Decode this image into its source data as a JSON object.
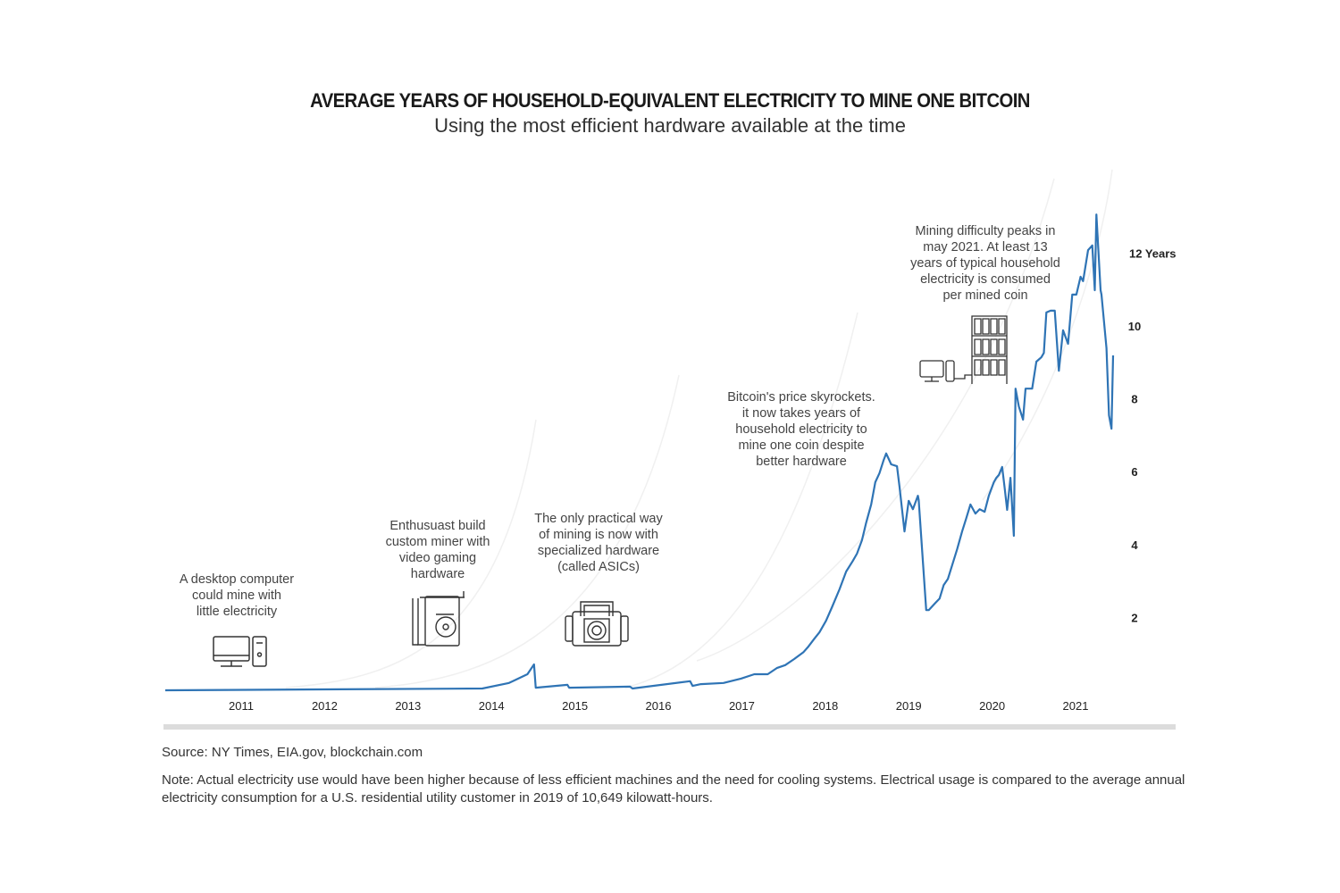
{
  "chart_data": {
    "type": "line",
    "title": "AVERAGE YEARS OF HOUSEHOLD-EQUIVALENT ELECTRICITY TO MINE ONE BITCOIN",
    "subtitle": "Using the most efficient hardware available at the time",
    "xlabel": "",
    "ylabel": "",
    "xlim": [
      2010.1,
      2022.0
    ],
    "ylim": [
      0,
      13
    ],
    "grid": false,
    "line_color": "#2f74b5",
    "x_ticks": [
      2011,
      2012,
      2013,
      2014,
      2015,
      2016,
      2017,
      2018,
      2019,
      2020,
      2021
    ],
    "x_tick_labels": [
      "2011",
      "2012",
      "2013",
      "2014",
      "2015",
      "2016",
      "2017",
      "2018",
      "2019",
      "2020",
      "2021"
    ],
    "y_ticks": [
      2,
      4,
      6,
      8,
      10,
      12
    ],
    "y_tick_labels": [
      "2",
      "4",
      "6",
      "8",
      "10",
      "12 Years"
    ],
    "series": [
      {
        "x": [
          2010.09,
          2013.89,
          2014.21,
          2014.43,
          2014.51,
          2014.53,
          2014.91,
          2014.93,
          2015.66,
          2015.69,
          2016.38,
          2016.41,
          2016.51,
          2016.78,
          2016.99,
          2017.15,
          2017.31,
          2017.42,
          2017.52,
          2017.63,
          2017.74,
          2017.79,
          2017.87,
          2017.93,
          2018.01,
          2018.08,
          2018.17,
          2018.25,
          2018.33,
          2018.38,
          2018.44,
          2018.49,
          2018.55,
          2018.6,
          2018.65,
          2018.7,
          2018.73,
          2018.79,
          2018.86,
          2018.89,
          2018.95,
          2019.0,
          2019.05,
          2019.11,
          2019.12,
          2019.21,
          2019.24,
          2019.32,
          2019.37,
          2019.42,
          2019.47,
          2019.53,
          2019.58,
          2019.64,
          2019.69,
          2019.74,
          2019.8,
          2019.85,
          2019.91,
          2019.96,
          2020.02,
          2020.05,
          2020.08,
          2020.12,
          2020.15,
          2020.18,
          2020.22,
          2020.26,
          2020.28,
          2020.32,
          2020.37,
          2020.4,
          2020.48,
          2020.53,
          2020.59,
          2020.62,
          2020.65,
          2020.7,
          2020.75,
          2020.8,
          2020.85,
          2020.91,
          2020.96,
          2021.01,
          2021.06,
          2021.09,
          2021.15,
          2021.2,
          2021.23,
          2021.25,
          2021.3,
          2021.31,
          2021.37,
          2021.4,
          2021.43,
          2021.45
        ],
        "y": [
          0,
          0.05,
          0.2,
          0.44,
          0.71,
          0.07,
          0.15,
          0.07,
          0.1,
          0.05,
          0.25,
          0.12,
          0.17,
          0.2,
          0.32,
          0.44,
          0.44,
          0.61,
          0.69,
          0.86,
          1.05,
          1.18,
          1.42,
          1.59,
          1.91,
          2.28,
          2.77,
          3.26,
          3.55,
          3.75,
          4.12,
          4.6,
          5.1,
          5.71,
          5.96,
          6.32,
          6.5,
          6.2,
          6.15,
          5.59,
          4.36,
          5.2,
          4.97,
          5.34,
          5.22,
          2.2,
          2.2,
          2.4,
          2.52,
          2.89,
          3.06,
          3.5,
          3.87,
          4.36,
          4.72,
          5.1,
          4.85,
          4.97,
          4.9,
          5.34,
          5.71,
          5.83,
          5.91,
          6.13,
          5.56,
          4.95,
          5.83,
          4.24,
          8.28,
          7.79,
          7.43,
          8.28,
          8.28,
          9.02,
          9.14,
          9.26,
          10.37,
          10.42,
          10.42,
          8.77,
          9.88,
          9.51,
          10.86,
          10.86,
          11.35,
          11.23,
          12.08,
          12.21,
          10.98,
          13.06,
          10.98,
          10.86,
          9.39,
          7.55,
          7.18,
          9.19
        ]
      }
    ],
    "annotations": [
      {
        "text": [
          "A desktop computer",
          "could mine with",
          "little electricity"
        ],
        "icon": "desktop-computer-icon"
      },
      {
        "text": [
          "Enthusuast build",
          "custom miner with",
          "video gaming",
          "hardware"
        ],
        "icon": "graphics-card-icon"
      },
      {
        "text": [
          "The only practical way",
          "of mining is now with",
          "specialized hardware",
          "(called ASICs)"
        ],
        "icon": "asic-miner-icon"
      },
      {
        "text": [
          "Bitcoin's price skyrockets.",
          "it now takes years of",
          "household electricity to",
          "mine one coin despite",
          "better hardware"
        ]
      },
      {
        "text": [
          "Mining difficulty peaks in",
          "may 2021. At least 13",
          "years of typical household",
          "electricity is consumed",
          "per mined coin"
        ],
        "icon": "mining-farm-icon"
      }
    ]
  },
  "footer": {
    "source": "Source: NY Times, EIA.gov, blockchain.com",
    "note": "Note: Actual electricity use would have been higher because of less efficient machines and the need for cooling systems. Electrical usage is compared to the average annual electricity consumption for a U.S. residential utility customer in 2019 of 10,649 kilowatt-hours."
  }
}
